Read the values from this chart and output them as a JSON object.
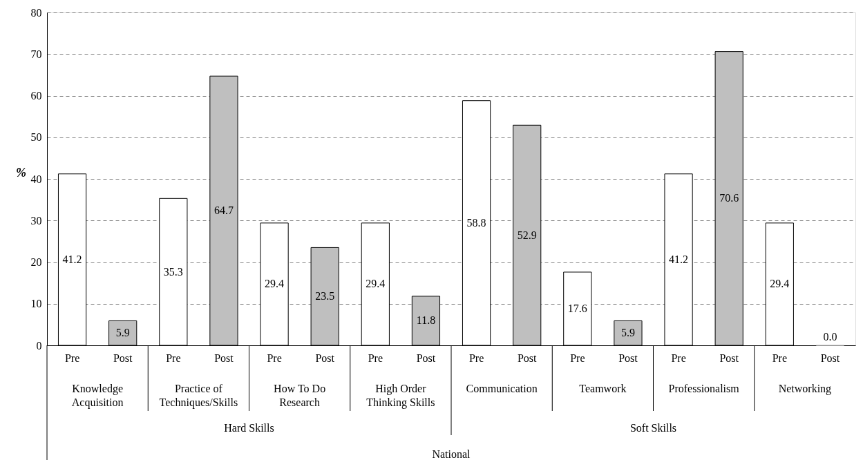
{
  "chart_data": {
    "type": "bar",
    "ylabel": "%",
    "categories": [
      "Pre",
      "Post",
      "Pre",
      "Post",
      "Pre",
      "Post",
      "Pre",
      "Post",
      "Pre",
      "Post",
      "Pre",
      "Post",
      "Pre",
      "Post",
      "Pre",
      "Post"
    ],
    "values": [
      41.2,
      5.9,
      35.3,
      64.7,
      29.4,
      23.5,
      29.4,
      11.8,
      58.8,
      52.9,
      17.6,
      5.9,
      41.2,
      70.6,
      29.4,
      0.0
    ],
    "colors": [
      "#ffffff",
      "#bfbfbf",
      "#ffffff",
      "#bfbfbf",
      "#ffffff",
      "#bfbfbf",
      "#ffffff",
      "#bfbfbf",
      "#ffffff",
      "#bfbfbf",
      "#ffffff",
      "#bfbfbf",
      "#ffffff",
      "#bfbfbf",
      "#ffffff",
      "#bfbfbf"
    ],
    "value_labels": [
      "41.2",
      "5.9",
      "35.3",
      "64.7",
      "29.4",
      "23.5",
      "29.4",
      "11.8",
      "58.8",
      "52.9",
      "17.6",
      "5.9",
      "41.2",
      "70.6",
      "29.4",
      "0.0"
    ],
    "ylim": [
      0,
      80
    ],
    "yticks": [
      0,
      10,
      20,
      30,
      40,
      50,
      60,
      70,
      80
    ],
    "grid": "y",
    "annotations": [
      "Knowledge Acquisition",
      "Practice of Techniques/Skills",
      "How To Do Research",
      "High Order Thinking Skills",
      "Communication",
      "Teamwork",
      "Professionalism",
      "Networking",
      "Hard Skills",
      "Soft Skills",
      "National"
    ]
  }
}
